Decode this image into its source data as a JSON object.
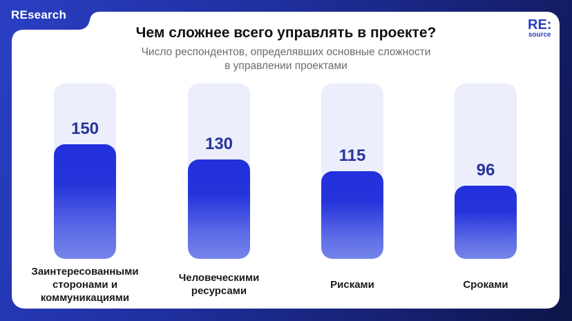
{
  "brand": {
    "tab_label": "REsearch",
    "logo_top": "RE:",
    "logo_bottom": "source"
  },
  "header": {
    "title": "Чем сложнее всего управлять в проекте?",
    "subtitle": "Число респондентов, определявших основные сложности в управлении проектами"
  },
  "colors": {
    "background": "#1f2f9e",
    "bar": "#2230dc",
    "track": "#eceefb",
    "value_text": "#26349a"
  },
  "chart_data": {
    "type": "bar",
    "title": "Чем сложнее всего управлять в проекте?",
    "subtitle": "Число респондентов, определявших основные сложности в управлении проектами",
    "categories": [
      "Заинтересованными сторонами и коммуникациями",
      "Человеческими ресурсами",
      "Рисками",
      "Сроками"
    ],
    "values": [
      150,
      130,
      115,
      96
    ],
    "value_labels": [
      "150",
      "130",
      "115",
      "96"
    ],
    "xlabel": "",
    "ylabel": "",
    "ylim": [
      0,
      230
    ],
    "grid": false,
    "legend": "none"
  }
}
